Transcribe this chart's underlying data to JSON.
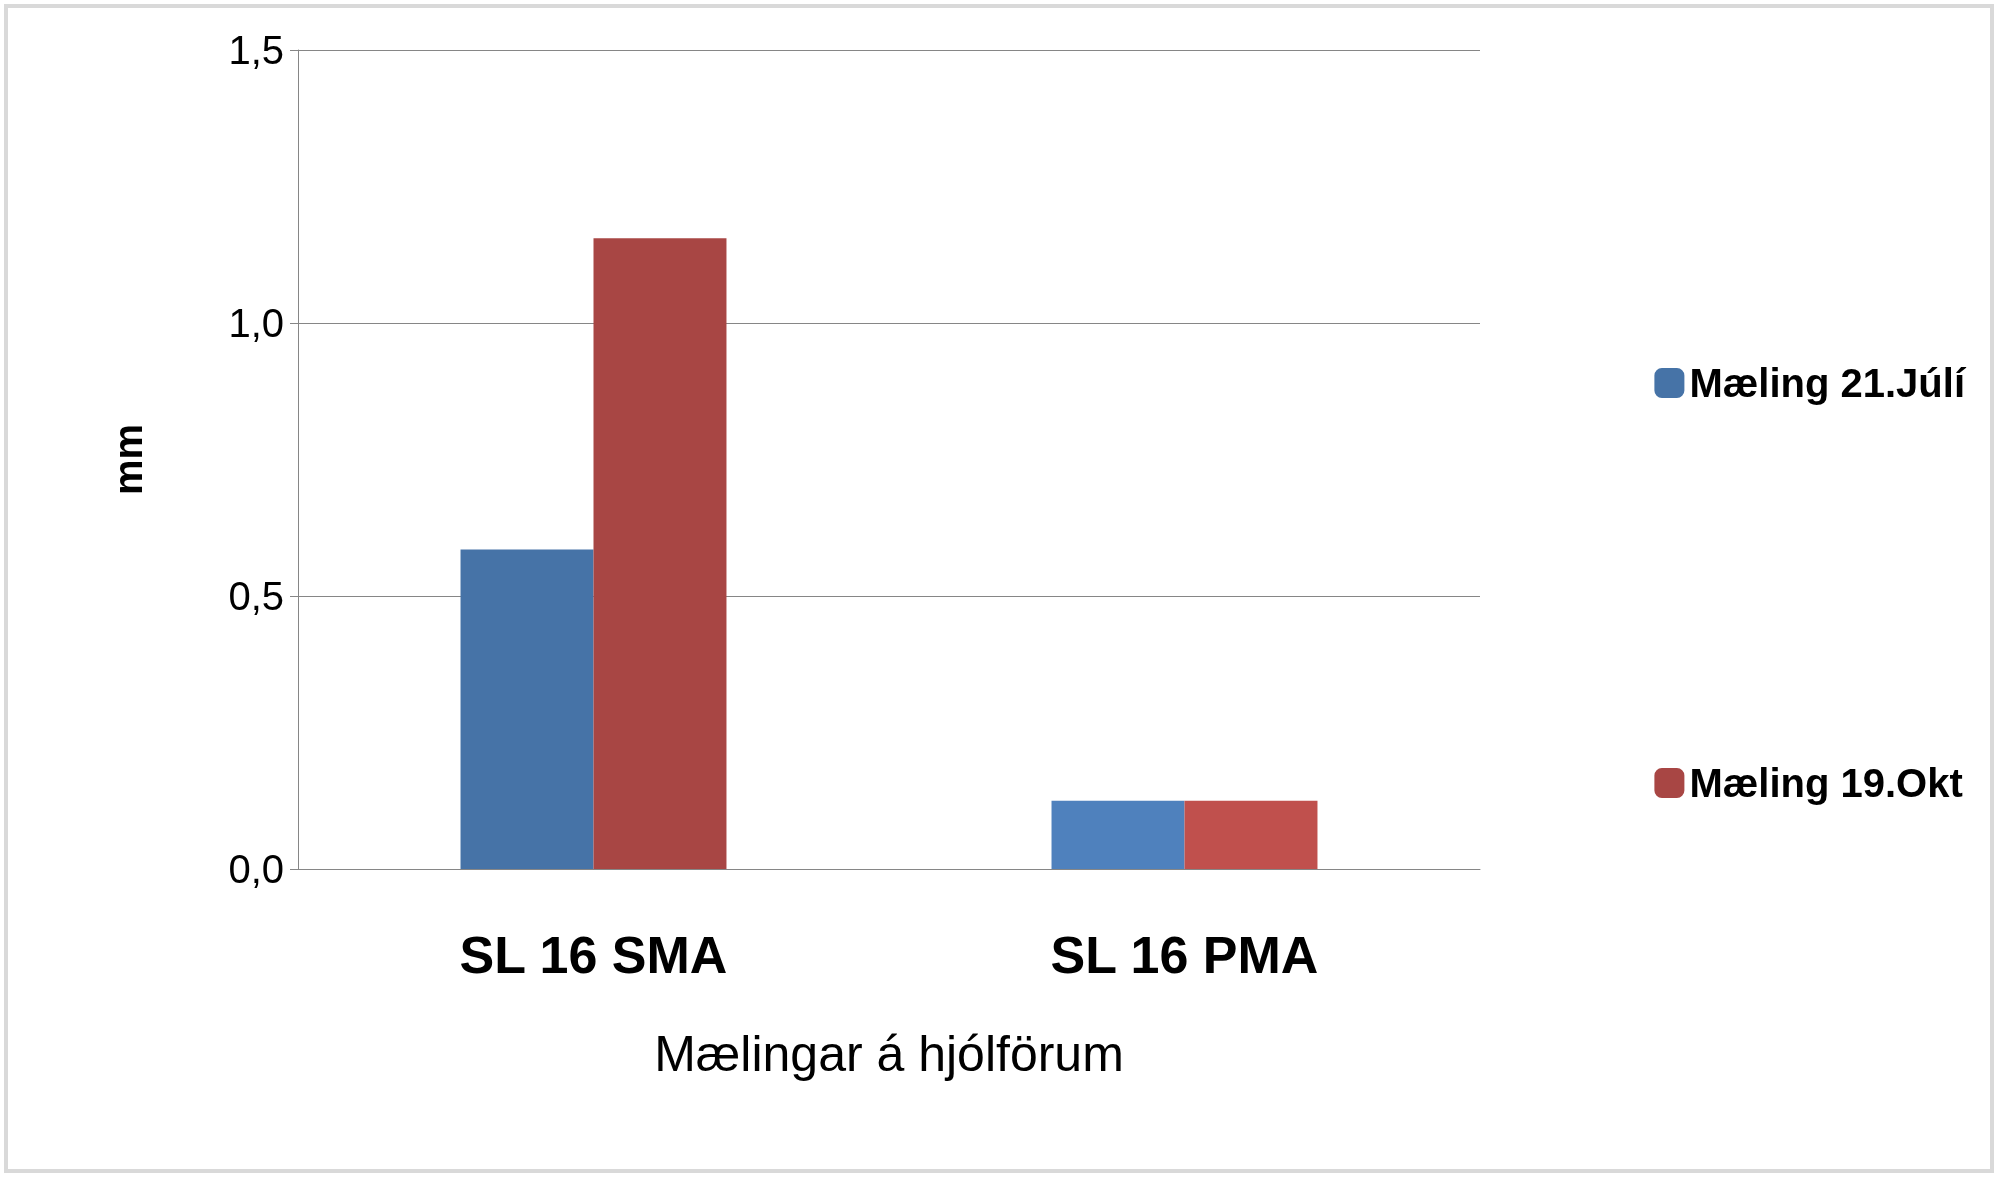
{
  "chart_data": {
    "type": "bar",
    "xlabel": "Mælingar á hjólförum",
    "ylabel": "mm",
    "categories": [
      "SL 16 SMA",
      "SL 16 PMA"
    ],
    "series": [
      {
        "name": "Mæling 21.Júlí",
        "color": "#4673a7",
        "colors": [
          "#4673a7",
          "#4f81bd"
        ],
        "values": [
          0.585,
          0.125
        ]
      },
      {
        "name": "Mæling 19.Okt",
        "color": "#a84644",
        "colors": [
          "#a84644",
          "#c0504d"
        ],
        "values": [
          1.155,
          0.125
        ]
      }
    ],
    "ylim": [
      0,
      1.5
    ],
    "yticks": [
      {
        "value": 0,
        "label": "0,0"
      },
      {
        "value": 0.5,
        "label": "0,5"
      },
      {
        "value": 1,
        "label": "1,0"
      },
      {
        "value": 1.5,
        "label": "1,5"
      }
    ],
    "grid": "y",
    "legend": "right"
  }
}
